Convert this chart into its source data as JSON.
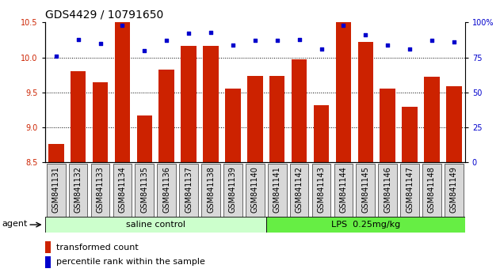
{
  "title": "GDS4429 / 10791650",
  "categories": [
    "GSM841131",
    "GSM841132",
    "GSM841133",
    "GSM841134",
    "GSM841135",
    "GSM841136",
    "GSM841137",
    "GSM841138",
    "GSM841139",
    "GSM841140",
    "GSM841141",
    "GSM841142",
    "GSM841143",
    "GSM841144",
    "GSM841145",
    "GSM841146",
    "GSM841147",
    "GSM841148",
    "GSM841149"
  ],
  "bar_values": [
    8.76,
    9.8,
    9.65,
    10.5,
    9.17,
    9.82,
    10.17,
    10.17,
    9.55,
    9.73,
    9.73,
    9.97,
    9.32,
    10.5,
    10.22,
    9.56,
    9.3,
    9.72,
    9.59
  ],
  "dot_values": [
    76,
    88,
    85,
    98,
    80,
    87,
    92,
    93,
    84,
    87,
    87,
    88,
    81,
    98,
    91,
    84,
    81,
    87,
    86
  ],
  "bar_color": "#cc2200",
  "dot_color": "#0000cc",
  "ylim_left": [
    8.5,
    10.5
  ],
  "ylim_right": [
    0,
    100
  ],
  "yticks_left": [
    8.5,
    9.0,
    9.5,
    10.0,
    10.5
  ],
  "yticks_right": [
    0,
    25,
    50,
    75,
    100
  ],
  "ytick_labels_right": [
    "0",
    "25",
    "50",
    "75",
    "100%"
  ],
  "hlines": [
    10.0,
    9.5,
    9.0
  ],
  "group1_label": "saline control",
  "group2_label": "LPS  0.25mg/kg",
  "group1_count": 10,
  "group2_count": 9,
  "agent_label": "agent",
  "legend_bar_label": "transformed count",
  "legend_dot_label": "percentile rank within the sample",
  "group1_color": "#ccffcc",
  "group2_color": "#66ee44",
  "tick_bg_color": "#d8d8d8",
  "bar_width": 0.7,
  "title_fontsize": 10,
  "tick_fontsize": 7,
  "label_fontsize": 8,
  "background_color": "#ffffff"
}
